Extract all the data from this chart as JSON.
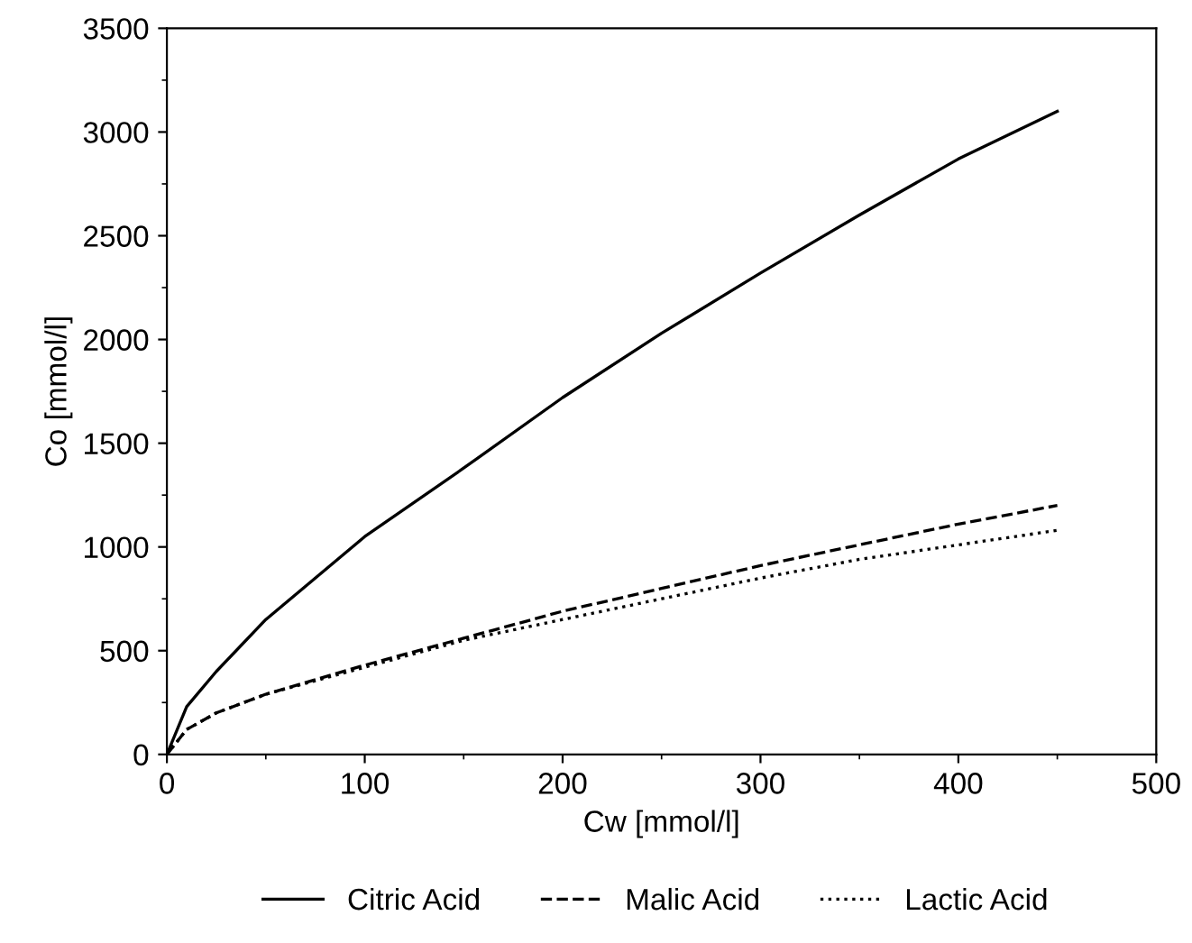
{
  "chart_data": {
    "type": "line",
    "xlabel": "Cw [mmol/l]",
    "ylabel": "Co [mmol/l]",
    "xlim": [
      0,
      500
    ],
    "xticks": [
      0,
      100,
      200,
      300,
      400,
      500
    ],
    "ylim": [
      0,
      3500
    ],
    "yticks": [
      0,
      500,
      1000,
      1500,
      2000,
      2500,
      3000,
      3500
    ],
    "grid": false,
    "legend": "bottom",
    "series": [
      {
        "name": "Citric Acid",
        "color": "#000000",
        "line_style": "solid",
        "x": [
          0,
          10,
          25,
          50,
          100,
          150,
          200,
          250,
          300,
          350,
          400,
          450
        ],
        "values": [
          0,
          230,
          400,
          650,
          1050,
          1380,
          1720,
          2030,
          2320,
          2600,
          2870,
          3100
        ]
      },
      {
        "name": "Malic Acid",
        "color": "#000000",
        "line_style": "dashed",
        "x": [
          0,
          10,
          25,
          50,
          100,
          150,
          200,
          250,
          300,
          350,
          400,
          450
        ],
        "values": [
          0,
          120,
          200,
          290,
          430,
          560,
          690,
          800,
          910,
          1010,
          1110,
          1200
        ]
      },
      {
        "name": "Lactic Acid",
        "color": "#000000",
        "line_style": "dotted",
        "x": [
          0,
          10,
          25,
          50,
          100,
          150,
          200,
          250,
          300,
          350,
          400,
          450
        ],
        "values": [
          0,
          120,
          200,
          290,
          420,
          550,
          650,
          750,
          850,
          940,
          1010,
          1080
        ]
      }
    ]
  }
}
